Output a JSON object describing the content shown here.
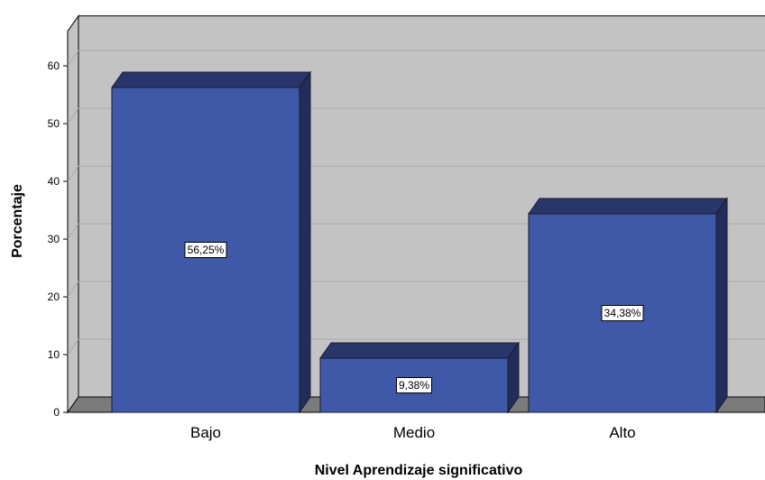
{
  "chart_data": {
    "type": "bar",
    "categories": [
      "Bajo",
      "Medio",
      "Alto"
    ],
    "values": [
      56.25,
      9.38,
      34.38
    ],
    "data_labels": [
      "56,25%",
      "9,38%",
      "34,38%"
    ],
    "xlabel": "Nivel Aprendizaje significativo",
    "ylabel": "Porcentaje",
    "ylim": [
      0,
      66
    ],
    "yticks": [
      0,
      10,
      20,
      30,
      40,
      50,
      60
    ],
    "grid": true,
    "legend": "none",
    "style": "3d",
    "colors": {
      "bar_front": "#3f59a8",
      "bar_top": "#28366b",
      "bar_side": "#212d5a",
      "wall": "#c3c3c3",
      "floor": "#7b7b7b",
      "gridline": "#a9a9a9"
    }
  }
}
